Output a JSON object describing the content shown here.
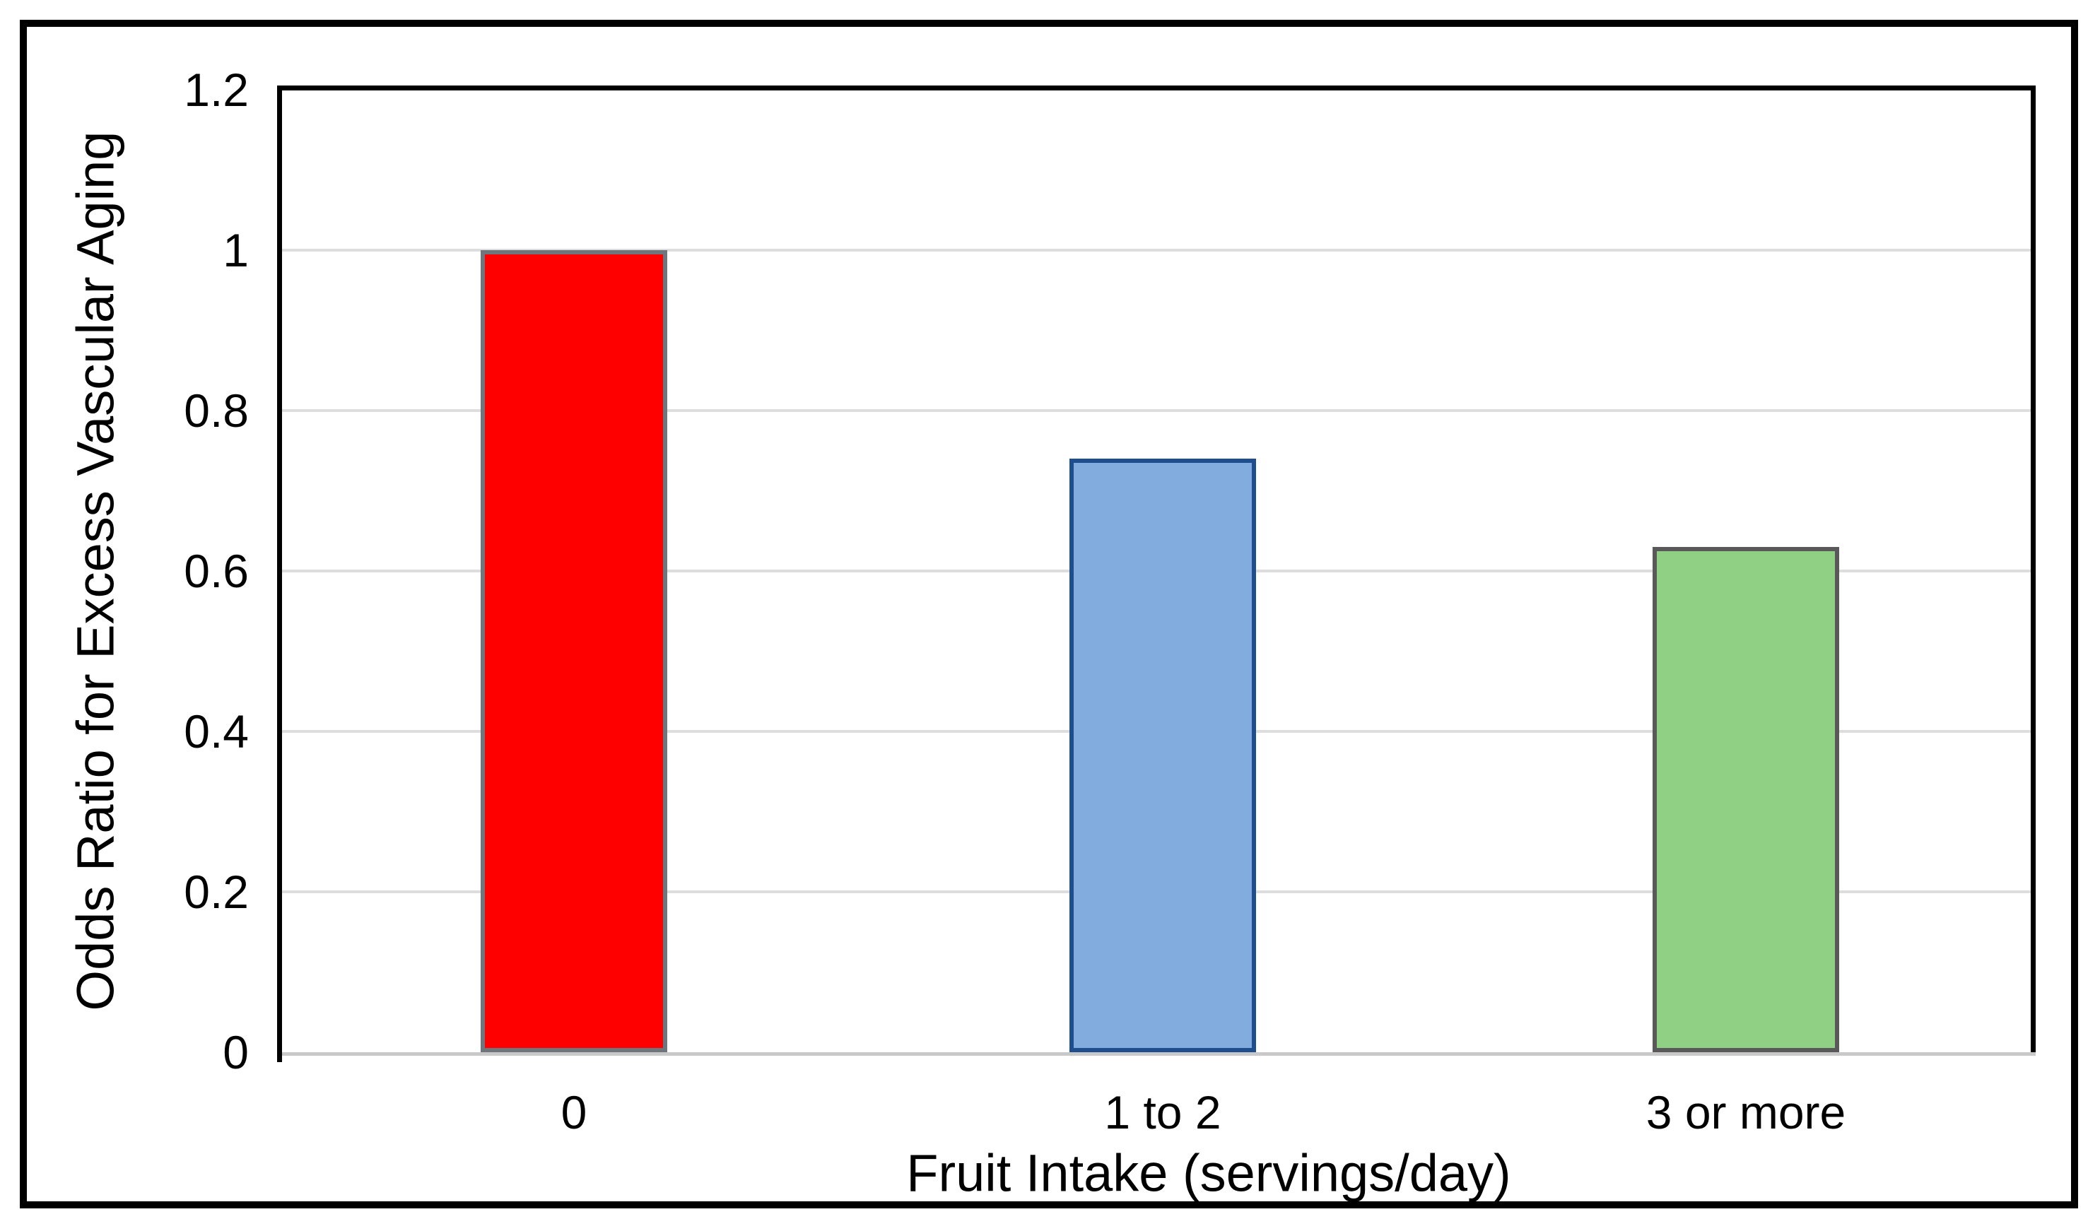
{
  "chart_data": {
    "type": "bar",
    "title": "",
    "categories": [
      "0",
      "1 to 2",
      "3 or more"
    ],
    "values": [
      1.0,
      0.74,
      0.63
    ],
    "xlabel": "Fruit Intake (servings/day)",
    "ylabel": "Odds Ratio for Excess Vascular Aging",
    "ylim": [
      0,
      1.2
    ],
    "ytick_labels": [
      "0",
      "0.2",
      "0.4",
      "0.6",
      "0.8",
      "1",
      "1.2"
    ],
    "ytick_values": [
      0,
      0.2,
      0.4,
      0.6,
      0.8,
      1.0,
      1.2
    ],
    "grid": true,
    "legend_position": "none",
    "bar_styles": [
      {
        "name": "zero-servings",
        "fill": "#FF0000",
        "border": "#6E757B"
      },
      {
        "name": "one-to-two",
        "fill": "#82ACDE",
        "border": "#1F4E8F"
      },
      {
        "name": "three-or-more",
        "fill": "#90D085",
        "border": "#595959"
      }
    ],
    "colors": {
      "gridline": "#DDDDDD",
      "axis": "#000000",
      "baseline": "#C9C9C9",
      "outer_border": "#000000",
      "background": "#FFFFFF",
      "text": "#000000"
    }
  }
}
